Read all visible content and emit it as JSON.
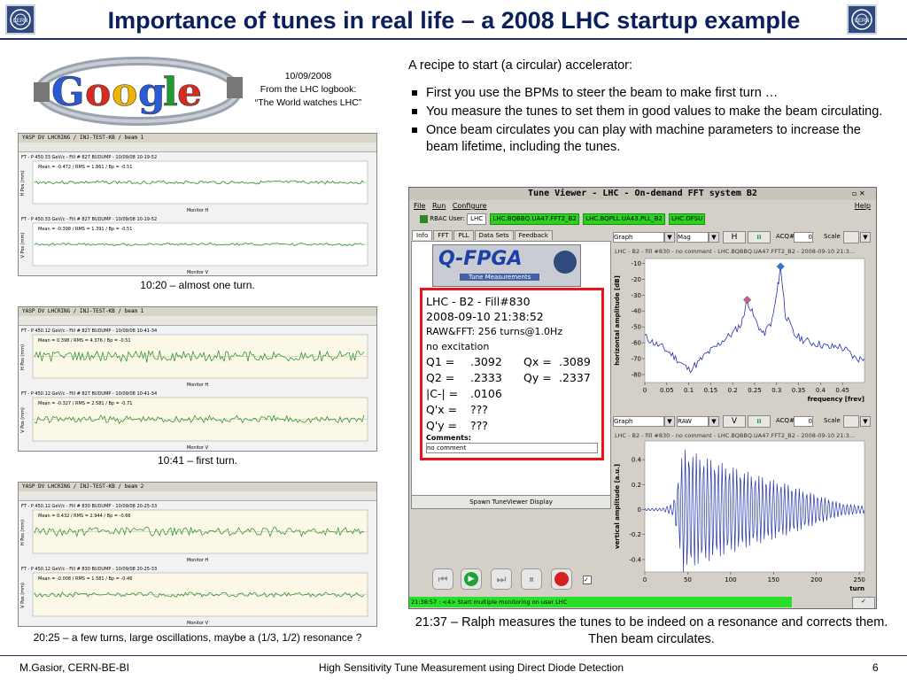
{
  "slide": {
    "title": "Importance of tunes in real life – a 2008 LHC startup example",
    "footer_left": "M.Gasior, CERN-BE-BI",
    "footer_center": "High Sensitivity Tune Measurement using Direct Diode Detection",
    "page_number": "6",
    "logo_text": "CERN"
  },
  "google": {
    "date": "10/09/2008",
    "line2": "From the LHC logbook:",
    "line3": "“The World watches LHC”"
  },
  "captions": {
    "scope1": "10:20 – almost one turn.",
    "scope2": "10:41 –  first turn.",
    "scope3": "20:25 – a few turns, large oscillations, maybe a (1/3, 1/2) resonance ?",
    "right": "21:37 – Ralph measures the tunes to be indeed on a resonance and corrects them. Then beam circulates."
  },
  "scopes": [
    {
      "title": "YASP DV LHCRING / INJ-TEST-KB / beam 1",
      "top_header": "FT - P 450.33 GeV/c - Fill # 827 BUDUMP - 10/09/08 10-19-52",
      "bottom_header": "FT - P 450.33 GeV/c - Fill # 827 BUDUMP - 10/09/08 10-19-52",
      "top_stats": "Mean = -0.472 / RMS = 1.861 / Bp = -0.51",
      "bottom_stats": "Mean = -0.398 / RMS = 1.391 / Bp = -0.51",
      "xlabel": "Monitor H",
      "xlabel2": "Monitor V",
      "ylabel_top": "H Pos (mm)",
      "ylabel_bottom": "V Pos (mm)"
    },
    {
      "title": "YASP DV LHCRING / INJ-TEST-KB / beam 1",
      "top_header": "FT - P 450.12 GeV/c - Fill # 827 BUDUMP - 10/09/08 10-41-34",
      "bottom_header": "FT - P 450.12 GeV/c - Fill # 827 BUDUMP - 10/09/08 10-41-34",
      "top_stats": "Mean = 0.398 / RMS = 4.376 / Bp = -0.51",
      "bottom_stats": "Mean = -0.327 / RMS = 2.581 / Bp = -0.71",
      "xlabel": "Monitor H",
      "xlabel2": "Monitor V",
      "ylabel_top": "H Pos (mm)",
      "ylabel_bottom": "V Pos (mm)"
    },
    {
      "title": "YASP DV LHCRING / INJ-TEST-KB / beam 2",
      "top_header": "FT - P 450.12 GeV/c - Fill # 830 BUDUMP - 10/09/08 20-25-33",
      "bottom_header": "FT - P 450.12 GeV/c - Fill # 830 BUDUMP - 10/09/08 20-25-33",
      "top_stats": "Mean = 0.432 / RMS = 2.944 / Bp = -0.66",
      "bottom_stats": "Mean = -0.008 / RMS = 1.581 / Bp = -0.46",
      "xlabel": "Monitor H",
      "xlabel2": "Monitor V",
      "ylabel_top": "H Pos (mm)",
      "ylabel_bottom": "V Pos (mm)"
    }
  ],
  "recipe": {
    "intro": "A recipe to start (a circular) accelerator:",
    "bullets": [
      "First you use the BPMs to steer the beam to make first turn …",
      "You measure the tunes to set them in good values to make the beam circulating.",
      "Once beam circulates you can play with  machine parameters to increase the beam lifetime, including the tunes."
    ]
  },
  "tuneviewer": {
    "window_title": "Tune Viewer - LHC - On-demand FFT system B2",
    "menu": [
      "File",
      "Run",
      "Configure"
    ],
    "help": "Help",
    "rbac": "RBAC",
    "user_label": "User:",
    "user_value": "LHC",
    "tags": [
      "LHC.BQBBQ.UA47.FFT2_B2",
      "LHC.BQPLL.UA43.PLL_B2",
      "LHC.OFSU"
    ],
    "tabs": [
      "Info",
      "FFT",
      "PLL",
      "Data Sets",
      "Feedback"
    ],
    "fpga_logo": "Q-FPGA",
    "fpga_sub": "Tune Measurements",
    "info_lines": {
      "fill": "LHC - B2 - Fill#830",
      "time": "2008-09-10 21:38:52",
      "raw": "RAW&FFT: 256 turns@1.0Hz",
      "exc": "no excitation",
      "q1": "Q1 =",
      "q1v": ".3092",
      "qx": "Qx =",
      "qxv": ".3089",
      "q2": "Q2 =",
      "q2v": ".2333",
      "qy": "Qy =",
      "qyv": ".2337",
      "c": "|C-| =",
      "cv": ".0106",
      "qpx": "Q'x =",
      "qpxv": "???",
      "qpy": "Q'y =",
      "qpyv": "???",
      "comments_label": "Comments:",
      "comment_value": "no comment"
    },
    "spawn_button": "Spawn TuneViewer Display",
    "status_text": "21:38:57 : <4> Start multiple monitoring on user LHC",
    "top_controls": {
      "dropdown1": "Graph",
      "dropdown2": "Mag",
      "mode": "H",
      "acq_label": "ACQ#:",
      "acq_value": "0",
      "scale_label": "Scale"
    },
    "bottom_controls": {
      "dropdown1": "Graph",
      "dropdown2": "RAW",
      "mode": "V",
      "acq_label": "ACQ#:",
      "acq_value": "0",
      "scale_label": "Scale"
    },
    "top_plot_title": "LHC - B2 - fill #830 - no comment - LHC.BQBBQ.UA47.FFT2_B2 - 2008-09-10 21:3...",
    "bottom_plot_title": "LHC - B2 - fill #830 - no comment - LHC.BQBBQ.UA47.FFT2_B2 - 2008-09-10 21:3..."
  },
  "chart_data": [
    {
      "type": "line",
      "title": "",
      "xlabel": "frequency [frev]",
      "ylabel": "horizontal amplitude [dB]",
      "xlim": [
        0,
        0.5
      ],
      "ylim": [
        -85,
        -7
      ],
      "x_ticks": [
        "0",
        "0.05",
        "0.1",
        "0.15",
        "0.2",
        "0.25",
        "0.3",
        "0.35",
        "0.4",
        "0.45"
      ],
      "y_ticks": [
        "-10",
        "-20",
        "-30",
        "-40",
        "-50",
        "-60",
        "-70",
        "-80"
      ],
      "x": [
        0.0,
        0.02,
        0.04,
        0.06,
        0.08,
        0.1,
        0.12,
        0.14,
        0.16,
        0.18,
        0.2,
        0.22,
        0.233,
        0.25,
        0.27,
        0.29,
        0.3,
        0.309,
        0.32,
        0.34,
        0.36,
        0.38,
        0.4,
        0.42,
        0.44,
        0.46,
        0.48,
        0.5
      ],
      "values": [
        -56,
        -60,
        -63,
        -67,
        -72,
        -77,
        -73,
        -67,
        -63,
        -58,
        -54,
        -48,
        -33,
        -45,
        -55,
        -46,
        -30,
        -12,
        -42,
        -55,
        -58,
        -60,
        -61,
        -63,
        -62,
        -65,
        -70,
        -70
      ],
      "markers": [
        {
          "x": 0.233,
          "y": -33,
          "color": "#cc5c8f"
        },
        {
          "x": 0.309,
          "y": -12,
          "color": "#2a7fd4"
        }
      ]
    },
    {
      "type": "line",
      "title": "",
      "xlabel": "turn",
      "ylabel": "vertical amplitude [a.u.]",
      "xlim": [
        0,
        256
      ],
      "ylim": [
        -0.5,
        0.55
      ],
      "x_ticks": [
        "0",
        "50",
        "100",
        "150",
        "200",
        "250"
      ],
      "y_ticks": [
        "0.4",
        "0.2",
        "0",
        "-0.2",
        "-0.4"
      ],
      "envelope": [
        {
          "turn": 0,
          "amp": 0.01
        },
        {
          "turn": 20,
          "amp": 0.01
        },
        {
          "turn": 33,
          "amp": 0.05
        },
        {
          "turn": 40,
          "amp": 0.3
        },
        {
          "turn": 45,
          "amp": 0.5
        },
        {
          "turn": 60,
          "amp": 0.45
        },
        {
          "turn": 80,
          "amp": 0.4
        },
        {
          "turn": 100,
          "amp": 0.35
        },
        {
          "turn": 130,
          "amp": 0.28
        },
        {
          "turn": 160,
          "amp": 0.22
        },
        {
          "turn": 200,
          "amp": 0.12
        },
        {
          "turn": 230,
          "amp": 0.05
        },
        {
          "turn": 256,
          "amp": 0.03
        }
      ],
      "tune": 0.2333
    }
  ],
  "colors": {
    "title": "#0a1f5c",
    "header_line": "#1c2f6e",
    "red_box": "#e8141c",
    "green_tag": "#29d31f",
    "trace_green": "#1e8c1e",
    "trace_blue": "#2233aa"
  }
}
